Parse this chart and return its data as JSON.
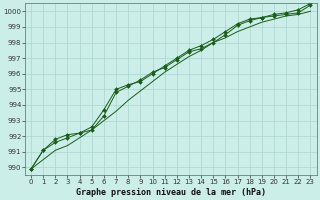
{
  "title": "Graphe pression niveau de la mer (hPa)",
  "background_color": "#cceee8",
  "grid_color": "#aad4ce",
  "line_color": "#1a5c1a",
  "marker_color": "#1a5c1a",
  "xlim": [
    -0.5,
    23.5
  ],
  "ylim": [
    989.5,
    1000.5
  ],
  "yticks": [
    990,
    991,
    992,
    993,
    994,
    995,
    996,
    997,
    998,
    999,
    1000
  ],
  "xticks": [
    0,
    1,
    2,
    3,
    4,
    5,
    6,
    7,
    8,
    9,
    10,
    11,
    12,
    13,
    14,
    15,
    16,
    17,
    18,
    19,
    20,
    21,
    22,
    23
  ],
  "series1_x": [
    0,
    1,
    2,
    3,
    4,
    5,
    6,
    7,
    8,
    9,
    10,
    11,
    12,
    13,
    14,
    15,
    16,
    17,
    18,
    19,
    20,
    21,
    22,
    23
  ],
  "series1_y": [
    989.9,
    990.5,
    991.1,
    991.4,
    991.9,
    992.4,
    993.0,
    993.6,
    994.3,
    994.9,
    995.5,
    996.1,
    996.6,
    997.1,
    997.5,
    998.0,
    998.3,
    998.7,
    999.0,
    999.3,
    999.5,
    999.7,
    999.8,
    1000.0
  ],
  "series2_x": [
    0,
    1,
    2,
    3,
    4,
    5,
    6,
    7,
    8,
    9,
    10,
    11,
    12,
    13,
    14,
    15,
    16,
    17,
    18,
    19,
    20,
    21,
    22,
    23
  ],
  "series2_y": [
    989.9,
    991.1,
    991.6,
    991.9,
    992.2,
    992.4,
    993.3,
    994.8,
    995.2,
    995.6,
    996.1,
    996.4,
    996.9,
    997.4,
    997.6,
    998.0,
    998.5,
    999.1,
    999.4,
    999.6,
    999.7,
    999.8,
    999.9,
    1000.4
  ],
  "series3_x": [
    0,
    1,
    2,
    3,
    4,
    5,
    6,
    7,
    8,
    9,
    10,
    11,
    12,
    13,
    14,
    15,
    16,
    17,
    18,
    19,
    20,
    21,
    22,
    23
  ],
  "series3_y": [
    989.9,
    991.1,
    991.8,
    992.1,
    992.2,
    992.6,
    993.7,
    995.0,
    995.3,
    995.5,
    996.0,
    996.5,
    997.0,
    997.5,
    997.8,
    998.2,
    998.7,
    999.2,
    999.5,
    999.6,
    999.8,
    999.9,
    1000.1,
    1000.5
  ],
  "spine_color": "#666666",
  "tick_labelsize": 5,
  "xlabel_fontsize": 6,
  "figsize": [
    3.2,
    2.0
  ],
  "dpi": 100
}
